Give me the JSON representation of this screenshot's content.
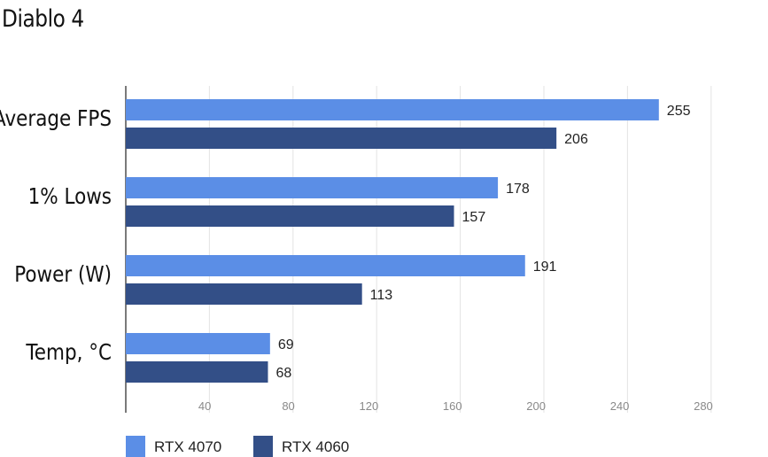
{
  "chart_data": {
    "type": "bar",
    "orientation": "horizontal",
    "title": "Diablo 4",
    "categories": [
      "Average FPS",
      "1% Lows",
      "Power (W)",
      "Temp, °C"
    ],
    "series": [
      {
        "name": "RTX 4070",
        "values": [
          255,
          178,
          191,
          69
        ],
        "color": "#5b8ee6"
      },
      {
        "name": "RTX 4060",
        "values": [
          206,
          157,
          113,
          68
        ],
        "color": "#334f87"
      }
    ],
    "xlim": [
      0,
      290
    ],
    "x_ticks": [
      40,
      80,
      120,
      160,
      200,
      240,
      280
    ],
    "x_tick_labels": [
      "40",
      "80",
      "120",
      "160",
      "200",
      "240",
      "280"
    ],
    "grid": true,
    "legend_position": "bottom-left",
    "xlabel": "",
    "ylabel": ""
  }
}
